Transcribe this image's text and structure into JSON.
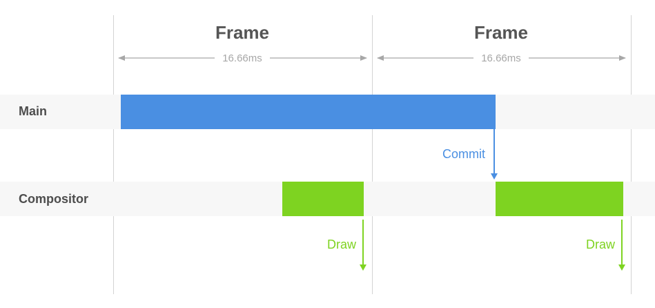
{
  "frames": [
    {
      "title": "Frame",
      "duration": "16.66ms"
    },
    {
      "title": "Frame",
      "duration": "16.66ms"
    }
  ],
  "lanes": {
    "main": {
      "label": "Main"
    },
    "compositor": {
      "label": "Compositor"
    }
  },
  "annotations": {
    "commit": "Commit",
    "draw_1": "Draw",
    "draw_2": "Draw"
  },
  "colors": {
    "main_bar": "#4a8fe2",
    "compositor_bar": "#7ed321",
    "commit_text": "#4a8fe2",
    "draw_text": "#7ed321",
    "grid_line": "#d3d3d3",
    "lane_bg": "#f7f7f7",
    "dimension_arrow": "#a7a7a7"
  }
}
